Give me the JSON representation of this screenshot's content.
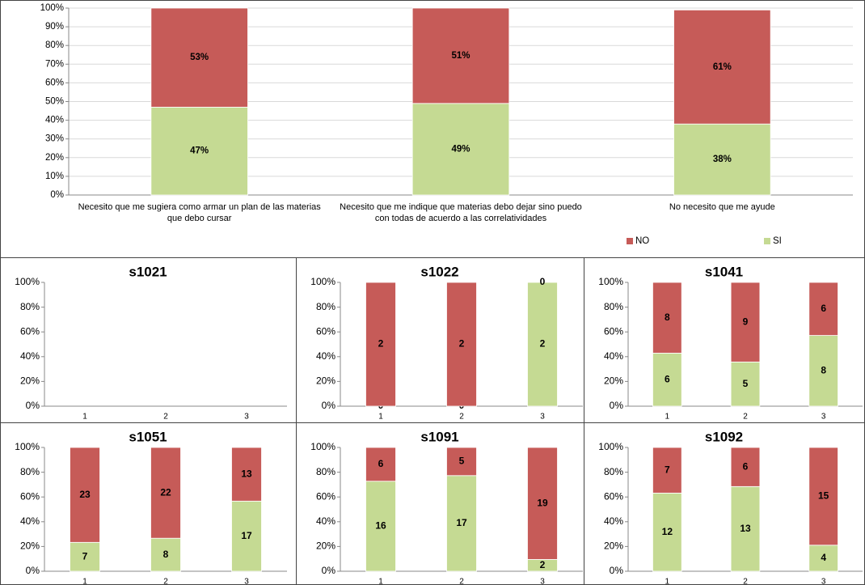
{
  "chart_data": [
    {
      "type": "bar",
      "stacked": true,
      "grid": true,
      "legend": "bottom-right",
      "categories": [
        "Necesito que me sugiera como armar un plan de las materias que debo cursar",
        "Necesito que me indique que materias debo dejar sino puedo con todas de acuerdo a las correlatividades",
        "No necesito que me ayude"
      ],
      "series": [
        {
          "name": "SI",
          "color": "#c5da93",
          "values": [
            47,
            49,
            38
          ],
          "value_labels": [
            "47%",
            "49%",
            "38%"
          ]
        },
        {
          "name": "NO",
          "color": "#c65b58",
          "values": [
            53,
            51,
            61
          ],
          "value_labels": [
            "53%",
            "51%",
            "61%"
          ]
        }
      ],
      "ylim": [
        0,
        100
      ],
      "yticks": [
        {
          "value": 0,
          "label": "0%"
        },
        {
          "value": 10,
          "label": "10%"
        },
        {
          "value": 20,
          "label": "20%"
        },
        {
          "value": 30,
          "label": "30%"
        },
        {
          "value": 40,
          "label": "40%"
        },
        {
          "value": 50,
          "label": "50%"
        },
        {
          "value": 60,
          "label": "60%"
        },
        {
          "value": 70,
          "label": "70%"
        },
        {
          "value": 80,
          "label": "80%"
        },
        {
          "value": 90,
          "label": "90%"
        },
        {
          "value": 100,
          "label": "100%"
        }
      ]
    },
    {
      "type": "bar",
      "stacked": true,
      "percent_stacked": true,
      "title": "s1021",
      "categories": [
        "1",
        "2",
        "3"
      ],
      "series": [
        {
          "name": "SI",
          "color": "#c5da93",
          "values": [
            null,
            null,
            null
          ]
        },
        {
          "name": "NO",
          "color": "#c65b58",
          "values": [
            null,
            null,
            null
          ]
        }
      ],
      "ylim": [
        0,
        100
      ],
      "yticks": [
        {
          "value": 0,
          "label": "0%"
        },
        {
          "value": 20,
          "label": "20%"
        },
        {
          "value": 40,
          "label": "40%"
        },
        {
          "value": 60,
          "label": "60%"
        },
        {
          "value": 80,
          "label": "80%"
        },
        {
          "value": 100,
          "label": "100%"
        }
      ]
    },
    {
      "type": "bar",
      "stacked": true,
      "percent_stacked": true,
      "title": "s1022",
      "categories": [
        "1",
        "2",
        "3"
      ],
      "series": [
        {
          "name": "SI",
          "color": "#c5da93",
          "values": [
            0,
            0,
            2
          ]
        },
        {
          "name": "NO",
          "color": "#c65b58",
          "values": [
            2,
            2,
            0
          ]
        }
      ],
      "ylim": [
        0,
        100
      ],
      "yticks": [
        {
          "value": 0,
          "label": "0%"
        },
        {
          "value": 20,
          "label": "20%"
        },
        {
          "value": 40,
          "label": "40%"
        },
        {
          "value": 60,
          "label": "60%"
        },
        {
          "value": 80,
          "label": "80%"
        },
        {
          "value": 100,
          "label": "100%"
        }
      ]
    },
    {
      "type": "bar",
      "stacked": true,
      "percent_stacked": true,
      "title": "s1041",
      "categories": [
        "1",
        "2",
        "3"
      ],
      "series": [
        {
          "name": "SI",
          "color": "#c5da93",
          "values": [
            6,
            5,
            8
          ]
        },
        {
          "name": "NO",
          "color": "#c65b58",
          "values": [
            8,
            9,
            6
          ]
        }
      ],
      "ylim": [
        0,
        100
      ],
      "yticks": [
        {
          "value": 0,
          "label": "0%"
        },
        {
          "value": 20,
          "label": "20%"
        },
        {
          "value": 40,
          "label": "40%"
        },
        {
          "value": 60,
          "label": "60%"
        },
        {
          "value": 80,
          "label": "80%"
        },
        {
          "value": 100,
          "label": "100%"
        }
      ]
    },
    {
      "type": "bar",
      "stacked": true,
      "percent_stacked": true,
      "title": "s1051",
      "categories": [
        "1",
        "2",
        "3"
      ],
      "series": [
        {
          "name": "SI",
          "color": "#c5da93",
          "values": [
            7,
            8,
            17
          ]
        },
        {
          "name": "NO",
          "color": "#c65b58",
          "values": [
            23,
            22,
            13
          ]
        }
      ],
      "ylim": [
        0,
        100
      ],
      "yticks": [
        {
          "value": 0,
          "label": "0%"
        },
        {
          "value": 20,
          "label": "20%"
        },
        {
          "value": 40,
          "label": "40%"
        },
        {
          "value": 60,
          "label": "60%"
        },
        {
          "value": 80,
          "label": "80%"
        },
        {
          "value": 100,
          "label": "100%"
        }
      ]
    },
    {
      "type": "bar",
      "stacked": true,
      "percent_stacked": true,
      "title": "s1091",
      "categories": [
        "1",
        "2",
        "3"
      ],
      "series": [
        {
          "name": "SI",
          "color": "#c5da93",
          "values": [
            16,
            17,
            2
          ]
        },
        {
          "name": "NO",
          "color": "#c65b58",
          "values": [
            6,
            5,
            19
          ]
        }
      ],
      "ylim": [
        0,
        100
      ],
      "yticks": [
        {
          "value": 0,
          "label": "0%"
        },
        {
          "value": 20,
          "label": "20%"
        },
        {
          "value": 40,
          "label": "40%"
        },
        {
          "value": 60,
          "label": "60%"
        },
        {
          "value": 80,
          "label": "80%"
        },
        {
          "value": 100,
          "label": "100%"
        }
      ]
    },
    {
      "type": "bar",
      "stacked": true,
      "percent_stacked": true,
      "title": "s1092",
      "categories": [
        "1",
        "2",
        "3"
      ],
      "series": [
        {
          "name": "SI",
          "color": "#c5da93",
          "values": [
            12,
            13,
            4
          ]
        },
        {
          "name": "NO",
          "color": "#c65b58",
          "values": [
            7,
            6,
            15
          ]
        }
      ],
      "ylim": [
        0,
        100
      ],
      "yticks": [
        {
          "value": 0,
          "label": "0%"
        },
        {
          "value": 20,
          "label": "20%"
        },
        {
          "value": 40,
          "label": "40%"
        },
        {
          "value": 60,
          "label": "60%"
        },
        {
          "value": 80,
          "label": "80%"
        },
        {
          "value": 100,
          "label": "100%"
        }
      ]
    }
  ]
}
